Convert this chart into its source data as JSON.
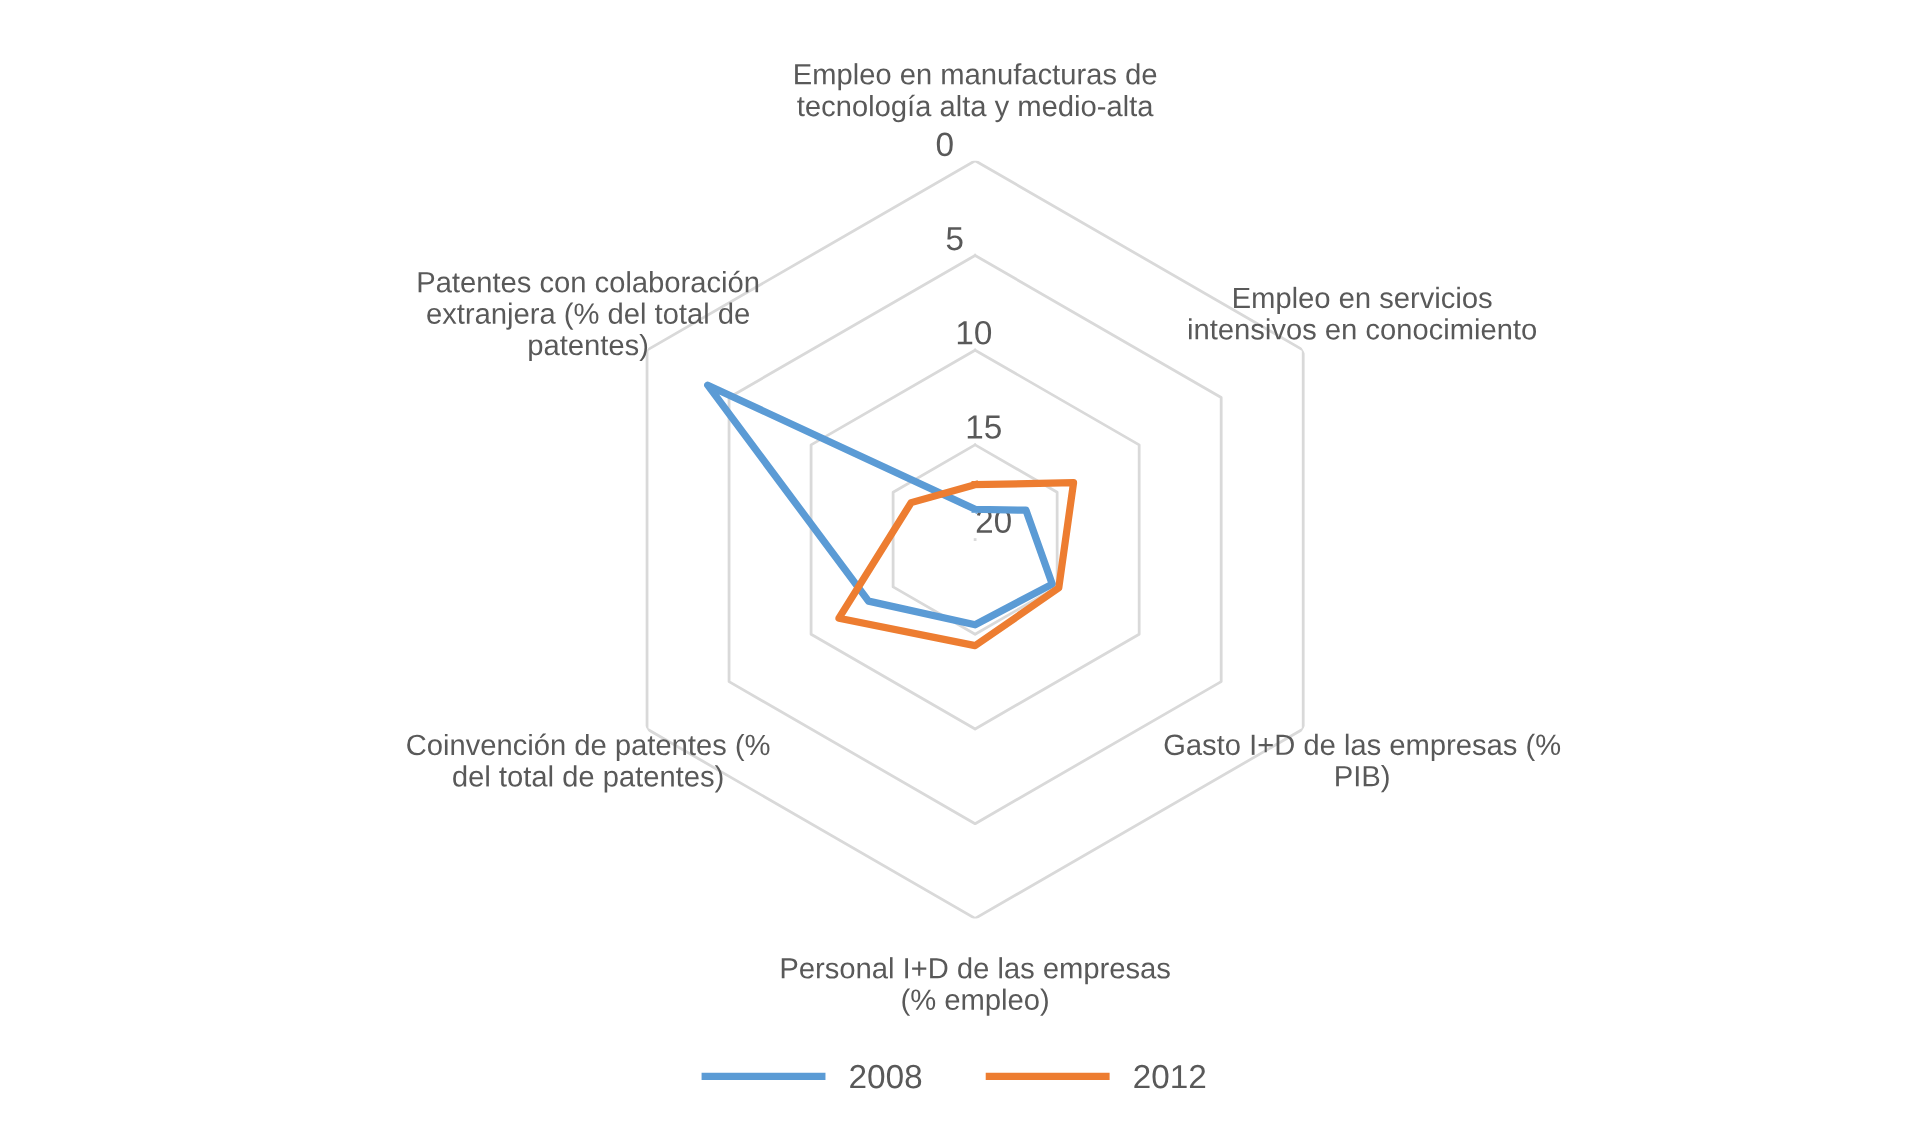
{
  "chart_data": {
    "type": "radar",
    "categories": [
      "Empleo en manufacturas de\ntecnología alta y medio-alta",
      "Empleo en servicios\nintensivos en conocimiento",
      "Gasto I+D de las empresas (%\nPIB)",
      "Personal I+D de las empresas\n(% empleo)",
      "Coinvención de patentes (%\ndel total de patentes)",
      "Patentes con colaboración\nextranjera (% del total de\npatentes)"
    ],
    "series": [
      {
        "name": "2008",
        "color": "#5b9bd5",
        "values": [
          18.4,
          16.9,
          15.3,
          15.5,
          13.5,
          3.7
        ]
      },
      {
        "name": "2012",
        "color": "#ed7d31",
        "values": [
          17.1,
          14.0,
          14.9,
          14.4,
          11.7,
          16.1
        ]
      }
    ],
    "ylim": [
      20,
      0
    ],
    "yticks": [
      0,
      5,
      10,
      15,
      20
    ],
    "grid": true,
    "legend": "bottom"
  }
}
